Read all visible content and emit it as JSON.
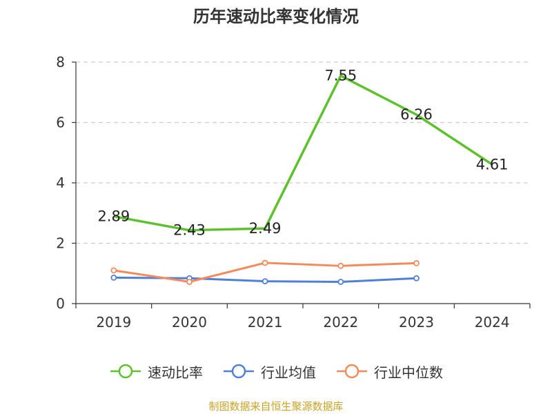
{
  "chart_data": {
    "type": "line",
    "title": "历年速动比率变化情况",
    "categories": [
      "2019",
      "2020",
      "2021",
      "2022",
      "2023",
      "2024"
    ],
    "ylim": [
      0,
      8
    ],
    "yticks": [
      0,
      2,
      4,
      6,
      8
    ],
    "grid": true,
    "legend_position": "bottom",
    "series": [
      {
        "name": "速动比率",
        "color": "#5cc12a",
        "values": [
          2.89,
          2.43,
          2.49,
          7.55,
          6.26,
          4.61
        ],
        "labels": [
          "2.89",
          "2.43",
          "2.49",
          "7.55",
          "6.26",
          "4.61"
        ]
      },
      {
        "name": "行业均值",
        "color": "#4f7fd8",
        "values": [
          0.86,
          0.84,
          0.74,
          0.72,
          0.84,
          null
        ]
      },
      {
        "name": "行业中位数",
        "color": "#f5895a",
        "values": [
          1.1,
          0.72,
          1.35,
          1.25,
          1.34,
          null
        ]
      }
    ],
    "source": "制图数据来自恒生聚源数据库"
  }
}
